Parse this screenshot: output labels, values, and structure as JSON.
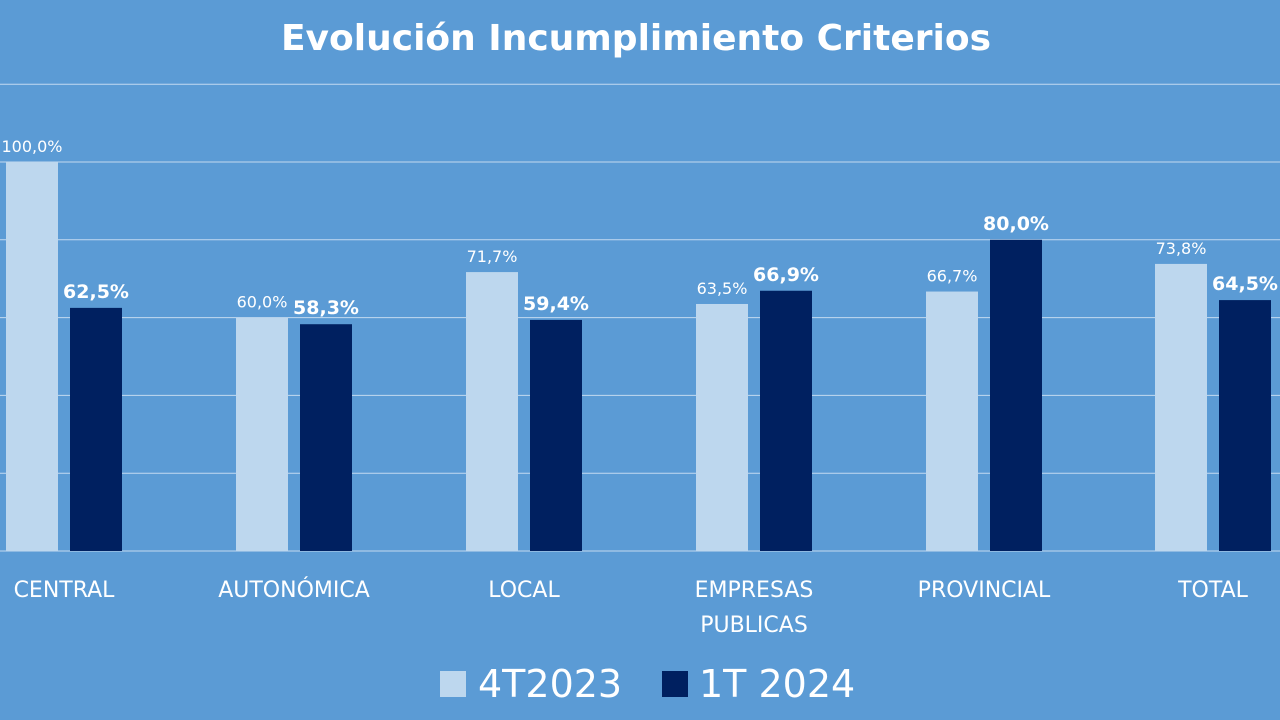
{
  "chart_data": {
    "type": "bar",
    "title": "Evolución Incumplimiento Criterios",
    "categories": [
      [
        "CENTRAL"
      ],
      [
        "AUTONÓMICA"
      ],
      [
        "LOCAL"
      ],
      [
        "EMPRESAS",
        "PUBLICAS"
      ],
      [
        "PROVINCIAL"
      ],
      [
        "TOTAL"
      ]
    ],
    "series": [
      {
        "name": "4T2023",
        "color": "#bdd7ee",
        "values": [
          100.0,
          60.0,
          71.7,
          63.5,
          66.7,
          73.8
        ],
        "labels": [
          "100,0%",
          "60,0%",
          "71,7%",
          "63,5%",
          "66,7%",
          "73,8%"
        ]
      },
      {
        "name": "1T 2024",
        "color": "#002060",
        "values": [
          62.5,
          58.3,
          59.4,
          66.9,
          80.0,
          64.5
        ],
        "labels": [
          "62,5%",
          "58,3%",
          "59,4%",
          "66,9%",
          "80,0%",
          "64,5%"
        ]
      }
    ],
    "ylim": [
      0,
      120
    ],
    "grid": true,
    "legend": "bottom",
    "background_color": "#5b9bd5"
  }
}
